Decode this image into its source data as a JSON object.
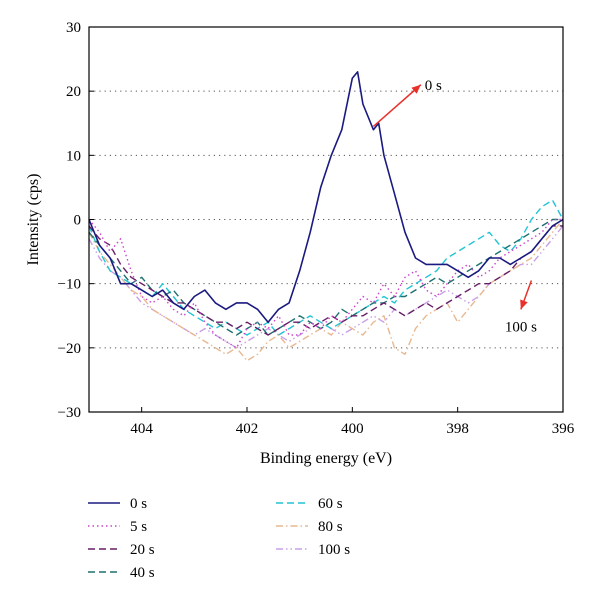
{
  "chart_data": {
    "type": "line",
    "title": "",
    "xlabel": "Binding energy (eV)",
    "ylabel": "Intensity (cps)",
    "xlim": [
      405,
      396
    ],
    "ylim": [
      -30,
      30
    ],
    "x_reversed": true,
    "xticks": [
      404,
      402,
      400,
      398,
      396
    ],
    "yticks": [
      -30,
      -20,
      -10,
      0,
      10,
      20,
      30
    ],
    "grid": "horizontal-dotted",
    "legend_position": "bottom",
    "series": [
      {
        "name": "0 s",
        "color": "#1a1a80",
        "dash": "solid",
        "x": [
          405.0,
          404.8,
          404.6,
          404.4,
          404.2,
          404.0,
          403.8,
          403.6,
          403.4,
          403.2,
          403.0,
          402.8,
          402.6,
          402.4,
          402.2,
          402.0,
          401.8,
          401.6,
          401.4,
          401.2,
          401.0,
          400.8,
          400.6,
          400.4,
          400.2,
          400.0,
          399.9,
          399.8,
          399.6,
          399.5,
          399.4,
          399.2,
          399.0,
          398.8,
          398.6,
          398.4,
          398.2,
          398.0,
          397.8,
          397.6,
          397.4,
          397.2,
          397.0,
          396.8,
          396.6,
          396.4,
          396.2,
          396.0
        ],
        "y": [
          0,
          -4,
          -6,
          -10,
          -10,
          -11,
          -12,
          -11,
          -13,
          -14,
          -12,
          -11,
          -13,
          -14,
          -13,
          -13,
          -14,
          -16,
          -14,
          -13,
          -8,
          -2,
          5,
          10,
          14,
          22,
          23,
          18,
          14,
          15,
          10,
          4,
          -2,
          -6,
          -7,
          -7,
          -7,
          -8,
          -9,
          -8,
          -6,
          -6,
          -7,
          -6,
          -5,
          -3,
          -1,
          0
        ]
      },
      {
        "name": "5 s",
        "color": "#cc44cc",
        "dash": "dotted",
        "x": [
          405.0,
          404.8,
          404.6,
          404.4,
          404.2,
          404.0,
          403.8,
          403.6,
          403.4,
          403.2,
          403.0,
          402.8,
          402.6,
          402.4,
          402.2,
          402.0,
          401.8,
          401.6,
          401.4,
          401.2,
          401.0,
          400.8,
          400.6,
          400.4,
          400.2,
          400.0,
          399.8,
          399.6,
          399.4,
          399.2,
          399.0,
          398.8,
          398.6,
          398.4,
          398.2,
          398.0,
          397.8,
          397.6,
          397.4,
          397.2,
          397.0,
          396.8,
          396.6,
          396.4,
          396.2,
          396.0
        ],
        "y": [
          0,
          -2,
          -5,
          -3,
          -8,
          -12,
          -13,
          -12,
          -14,
          -15,
          -13,
          -16,
          -18,
          -19,
          -20,
          -17,
          -16,
          -17,
          -15,
          -18,
          -18,
          -16,
          -17,
          -15,
          -16,
          -14,
          -12,
          -13,
          -10,
          -12,
          -9,
          -8,
          -11,
          -12,
          -10,
          -8,
          -7,
          -9,
          -8,
          -6,
          -5,
          -4,
          -3,
          -2,
          0,
          0
        ]
      },
      {
        "name": "20 s",
        "color": "#661f66",
        "dash": "dashed",
        "x": [
          405.0,
          404.8,
          404.6,
          404.4,
          404.2,
          404.0,
          403.8,
          403.6,
          403.4,
          403.2,
          403.0,
          402.8,
          402.6,
          402.4,
          402.2,
          402.0,
          401.8,
          401.6,
          401.4,
          401.2,
          401.0,
          400.8,
          400.6,
          400.4,
          400.2,
          400.0,
          399.8,
          399.6,
          399.4,
          399.2,
          399.0,
          398.8,
          398.6,
          398.4,
          398.2,
          398.0,
          397.8,
          397.6,
          397.4,
          397.2,
          397.0,
          396.8,
          396.6,
          396.4,
          396.2,
          396.0
        ],
        "y": [
          -1,
          -3,
          -4,
          -7,
          -9,
          -10,
          -11,
          -12,
          -13,
          -13,
          -14,
          -15,
          -16,
          -16,
          -17,
          -16,
          -17,
          -18,
          -17,
          -16,
          -16,
          -17,
          -16,
          -15,
          -16,
          -15,
          -15,
          -14,
          -13,
          -14,
          -15,
          -14,
          -13,
          -14,
          -13,
          -12,
          -11,
          -10,
          -10,
          -9,
          -8,
          -6,
          -5,
          -3,
          -1,
          -1
        ]
      },
      {
        "name": "40 s",
        "color": "#1f7070",
        "dash": "dashed",
        "x": [
          405.0,
          404.8,
          404.6,
          404.4,
          404.2,
          404.0,
          403.8,
          403.6,
          403.4,
          403.2,
          403.0,
          402.8,
          402.6,
          402.4,
          402.2,
          402.0,
          401.8,
          401.6,
          401.4,
          401.2,
          401.0,
          400.8,
          400.6,
          400.4,
          400.2,
          400.0,
          399.8,
          399.6,
          399.4,
          399.2,
          399.0,
          398.8,
          398.6,
          398.4,
          398.2,
          398.0,
          397.8,
          397.6,
          397.4,
          397.2,
          397.0,
          396.8,
          396.6,
          396.4,
          396.2,
          396.0
        ],
        "y": [
          -2,
          -4,
          -6,
          -8,
          -10,
          -9,
          -11,
          -12,
          -11,
          -13,
          -14,
          -15,
          -16,
          -17,
          -18,
          -17,
          -16,
          -18,
          -17,
          -16,
          -15,
          -16,
          -17,
          -16,
          -14,
          -15,
          -14,
          -13,
          -13,
          -12,
          -12,
          -11,
          -10,
          -9,
          -10,
          -9,
          -8,
          -7,
          -6,
          -5,
          -4,
          -3,
          -2,
          -1,
          0,
          0
        ]
      },
      {
        "name": "60 s",
        "color": "#22c4d4",
        "dash": "dashed",
        "x": [
          405.0,
          404.8,
          404.6,
          404.4,
          404.2,
          404.0,
          403.8,
          403.6,
          403.4,
          403.2,
          403.0,
          402.8,
          402.6,
          402.4,
          402.2,
          402.0,
          401.8,
          401.6,
          401.4,
          401.2,
          401.0,
          400.8,
          400.6,
          400.4,
          400.2,
          400.0,
          399.8,
          399.6,
          399.4,
          399.2,
          399.0,
          398.8,
          398.6,
          398.4,
          398.2,
          398.0,
          397.8,
          397.6,
          397.4,
          397.2,
          397.0,
          396.8,
          396.6,
          396.4,
          396.2,
          396.0
        ],
        "y": [
          -1,
          -5,
          -8,
          -9,
          -10,
          -11,
          -12,
          -10,
          -12,
          -14,
          -15,
          -16,
          -17,
          -16,
          -17,
          -18,
          -17,
          -16,
          -18,
          -17,
          -16,
          -15,
          -16,
          -17,
          -16,
          -15,
          -14,
          -13,
          -12,
          -13,
          -11,
          -10,
          -9,
          -8,
          -6,
          -5,
          -4,
          -3,
          -2,
          -4,
          -5,
          -3,
          0,
          2,
          3,
          0
        ]
      },
      {
        "name": "80 s",
        "color": "#e8b890",
        "dash": "dashdot",
        "x": [
          405.0,
          404.8,
          404.6,
          404.4,
          404.2,
          404.0,
          403.8,
          403.6,
          403.4,
          403.2,
          403.0,
          402.8,
          402.6,
          402.4,
          402.2,
          402.0,
          401.8,
          401.6,
          401.4,
          401.2,
          401.0,
          400.8,
          400.6,
          400.4,
          400.2,
          400.0,
          399.8,
          399.6,
          399.4,
          399.2,
          399.0,
          398.8,
          398.6,
          398.4,
          398.2,
          398.0,
          397.8,
          397.6,
          397.4,
          397.2,
          397.0,
          396.8,
          396.6,
          396.4,
          396.2,
          396.0
        ],
        "y": [
          -2,
          -5,
          -7,
          -9,
          -11,
          -12,
          -14,
          -15,
          -16,
          -17,
          -18,
          -19,
          -20,
          -21,
          -20,
          -22,
          -21,
          -19,
          -18,
          -20,
          -19,
          -18,
          -17,
          -18,
          -16,
          -17,
          -18,
          -16,
          -15,
          -20,
          -21,
          -17,
          -15,
          -14,
          -13,
          -16,
          -14,
          -12,
          -10,
          -9,
          -8,
          -7,
          -6,
          -4,
          -2,
          0
        ]
      },
      {
        "name": "100 s",
        "color": "#c8a0e8",
        "dash": "dashdotdot",
        "x": [
          405.0,
          404.8,
          404.6,
          404.4,
          404.2,
          404.0,
          403.8,
          403.6,
          403.4,
          403.2,
          403.0,
          402.8,
          402.6,
          402.4,
          402.2,
          402.0,
          401.8,
          401.6,
          401.4,
          401.2,
          401.0,
          400.8,
          400.6,
          400.4,
          400.2,
          400.0,
          399.8,
          399.6,
          399.4,
          399.2,
          399.0,
          398.8,
          398.6,
          398.4,
          398.2,
          398.0,
          397.8,
          397.6,
          397.4,
          397.2,
          397.0,
          396.8,
          396.6,
          396.4,
          396.2,
          396.0
        ],
        "y": [
          -3,
          -6,
          -8,
          -9,
          -11,
          -13,
          -14,
          -15,
          -16,
          -17,
          -18,
          -17,
          -18,
          -19,
          -20,
          -19,
          -18,
          -17,
          -18,
          -19,
          -18,
          -17,
          -16,
          -17,
          -18,
          -17,
          -16,
          -15,
          -16,
          -14,
          -15,
          -14,
          -13,
          -12,
          -11,
          -12,
          -13,
          -12,
          -10,
          -9,
          -8,
          -7,
          -7,
          -5,
          -3,
          -1
        ]
      }
    ],
    "annotations": [
      {
        "text": "0 s",
        "arrow_color": "#e8312a",
        "arrow_from": [
          399.6,
          14.5
        ],
        "arrow_to": [
          398.7,
          21
        ]
      },
      {
        "text": "100 s",
        "arrow_color": "#e8312a",
        "arrow_from": [
          396.6,
          -9.5
        ],
        "arrow_to": [
          396.8,
          -14
        ]
      }
    ]
  }
}
